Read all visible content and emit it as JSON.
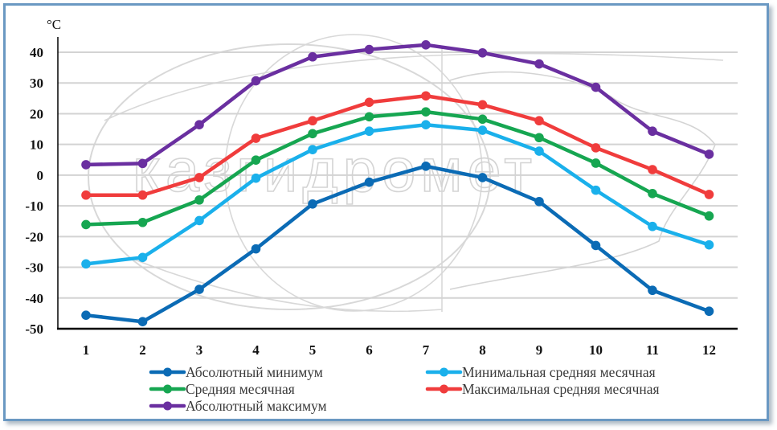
{
  "watermark": {
    "text": "казгидромет"
  },
  "chart_data": {
    "type": "line",
    "title": "",
    "xlabel": "",
    "ylabel": "°C",
    "x": [
      1,
      2,
      3,
      4,
      5,
      6,
      7,
      8,
      9,
      10,
      11,
      12
    ],
    "categories": [
      "1",
      "2",
      "3",
      "4",
      "5",
      "6",
      "7",
      "8",
      "9",
      "10",
      "11",
      "12"
    ],
    "ylim": [
      -50,
      40
    ],
    "yticks": [
      40,
      30,
      20,
      10,
      0,
      -10,
      -20,
      -30,
      -40,
      -50
    ],
    "ytick_labels": [
      "40",
      "30",
      "20",
      "10",
      "0",
      "-10",
      "-20",
      "-30",
      "-40",
      "-50"
    ],
    "grid": true,
    "legend_position": "bottom",
    "series": [
      {
        "name": "Абсолютный минимум",
        "color": "#0b6bb5",
        "values": [
          -45.6,
          -47.7,
          -37.2,
          -24.0,
          -9.4,
          -2.3,
          2.9,
          -0.8,
          -8.6,
          -22.9,
          -37.5,
          -44.3
        ]
      },
      {
        "name": "Минимальная средняя месячная",
        "color": "#1ab0eb",
        "values": [
          -28.9,
          -26.8,
          -14.8,
          -1.0,
          8.3,
          14.3,
          16.4,
          14.6,
          7.8,
          -4.9,
          -16.7,
          -22.7
        ]
      },
      {
        "name": "Средняя месячная",
        "color": "#16a651",
        "values": [
          -16.1,
          -15.4,
          -8.1,
          4.9,
          13.5,
          19.0,
          20.6,
          18.2,
          12.2,
          3.9,
          -6.0,
          -13.3
        ]
      },
      {
        "name": "Максимальная средняя месячная",
        "color": "#f03c3c",
        "values": [
          -6.5,
          -6.5,
          -0.8,
          12.0,
          17.7,
          23.7,
          25.8,
          22.9,
          17.7,
          8.9,
          1.8,
          -6.3
        ]
      },
      {
        "name": "Абсолютный максимум",
        "color": "#6a2fa0",
        "values": [
          3.4,
          3.8,
          16.4,
          30.7,
          38.5,
          40.9,
          42.4,
          39.8,
          36.2,
          28.6,
          14.3,
          6.8
        ]
      }
    ]
  }
}
